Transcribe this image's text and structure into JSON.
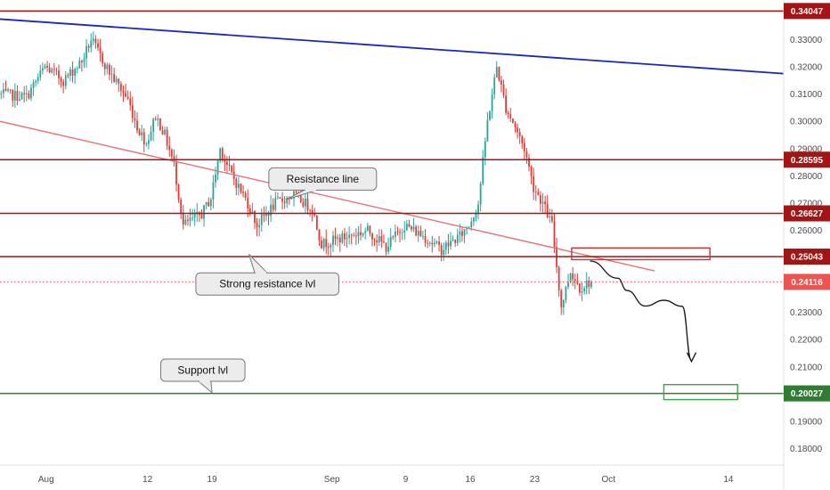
{
  "chart_data": {
    "type": "candlestick",
    "x_range": [
      "2019-07-27",
      "2019-10-20"
    ],
    "y_range": [
      0.174,
      0.3445
    ],
    "y_ticks": [
      {
        "value": 0.18,
        "label": "0.18000"
      },
      {
        "value": 0.19,
        "label": "0.19000"
      },
      {
        "value": 0.21,
        "label": "0.21000"
      },
      {
        "value": 0.22,
        "label": "0.22000"
      },
      {
        "value": 0.23,
        "label": "0.23000"
      },
      {
        "value": 0.26,
        "label": "0.26000"
      },
      {
        "value": 0.27,
        "label": "0.27000"
      },
      {
        "value": 0.28,
        "label": "0.28000"
      },
      {
        "value": 0.29,
        "label": "0.29000"
      },
      {
        "value": 0.3,
        "label": "0.30000"
      },
      {
        "value": 0.31,
        "label": "0.31000"
      },
      {
        "value": 0.32,
        "label": "0.32000"
      },
      {
        "value": 0.33,
        "label": "0.33000"
      }
    ],
    "x_ticks": [
      {
        "date": "2019-08-01",
        "label": "Aug"
      },
      {
        "date": "2019-08-12",
        "label": "12"
      },
      {
        "date": "2019-08-19",
        "label": "19"
      },
      {
        "date": "2019-09-01",
        "label": "Sep"
      },
      {
        "date": "2019-09-09",
        "label": "9"
      },
      {
        "date": "2019-09-16",
        "label": "16"
      },
      {
        "date": "2019-09-23",
        "label": "23"
      },
      {
        "date": "2019-10-01",
        "label": "Oct"
      },
      {
        "date": "2019-10-14",
        "label": "14"
      }
    ],
    "price_path": [
      [
        "2019-07-27",
        0.31
      ],
      [
        "2019-07-30",
        0.309
      ],
      [
        "2019-08-01",
        0.32
      ],
      [
        "2019-08-03",
        0.315
      ],
      [
        "2019-08-05",
        0.322
      ],
      [
        "2019-08-06",
        0.33
      ],
      [
        "2019-08-08",
        0.318
      ],
      [
        "2019-08-10",
        0.308
      ],
      [
        "2019-08-11",
        0.298
      ],
      [
        "2019-08-12",
        0.292
      ],
      [
        "2019-08-13",
        0.302
      ],
      [
        "2019-08-14",
        0.295
      ],
      [
        "2019-08-15",
        0.284
      ],
      [
        "2019-08-16",
        0.262
      ],
      [
        "2019-08-18",
        0.266
      ],
      [
        "2019-08-19",
        0.272
      ],
      [
        "2019-08-20",
        0.29
      ],
      [
        "2019-08-21",
        0.282
      ],
      [
        "2019-08-23",
        0.27
      ],
      [
        "2019-08-24",
        0.262
      ],
      [
        "2019-08-26",
        0.27
      ],
      [
        "2019-08-28",
        0.273
      ],
      [
        "2019-08-30",
        0.268
      ],
      [
        "2019-08-31",
        0.255
      ],
      [
        "2019-09-02",
        0.257
      ],
      [
        "2019-09-05",
        0.26
      ],
      [
        "2019-09-07",
        0.254
      ],
      [
        "2019-09-09",
        0.262
      ],
      [
        "2019-09-11",
        0.258
      ],
      [
        "2019-09-13",
        0.253
      ],
      [
        "2019-09-15",
        0.258
      ],
      [
        "2019-09-16",
        0.262
      ],
      [
        "2019-09-17",
        0.27
      ],
      [
        "2019-09-18",
        0.3
      ],
      [
        "2019-09-19",
        0.32
      ],
      [
        "2019-09-20",
        0.305
      ],
      [
        "2019-09-21",
        0.298
      ],
      [
        "2019-09-22",
        0.29
      ],
      [
        "2019-09-23",
        0.276
      ],
      [
        "2019-09-24",
        0.27
      ],
      [
        "2019-09-25",
        0.262
      ],
      [
        "2019-09-26",
        0.232
      ],
      [
        "2019-09-27",
        0.245
      ],
      [
        "2019-09-28",
        0.239
      ],
      [
        "2019-09-29",
        0.241
      ]
    ],
    "trendlines": [
      {
        "name": "descending-resistance",
        "color": "#1a24c4",
        "from": [
          "2019-07-27",
          0.3375
        ],
        "to": [
          "2019-10-20",
          0.3175
        ]
      },
      {
        "name": "resistance-line",
        "color": "#e57373",
        "from": [
          "2019-07-27",
          0.3
        ],
        "to": [
          "2019-10-06",
          0.2452
        ]
      }
    ],
    "levels": [
      {
        "name": "level-0.34047",
        "value": 0.34047,
        "label": "0.34047",
        "color": "#a31515"
      },
      {
        "name": "level-0.28595",
        "value": 0.28595,
        "label": "0.28595",
        "color": "#a31515"
      },
      {
        "name": "level-0.26627",
        "value": 0.26627,
        "label": "0.26627",
        "color": "#a31515"
      },
      {
        "name": "level-0.25043",
        "value": 0.25043,
        "label": "0.25043",
        "color": "#a31515"
      },
      {
        "name": "level-0.20027",
        "value": 0.20027,
        "label": "0.20027",
        "color": "#2e7d32"
      }
    ],
    "current_price": {
      "value": 0.24116,
      "label": "0.24116",
      "color": "#ef5350"
    },
    "zones": [
      {
        "name": "resistance-zone",
        "color": "#d32f2f",
        "x": [
          "2019-09-27",
          "2019-10-12"
        ],
        "y": [
          0.2493,
          0.2536
        ]
      },
      {
        "name": "target-zone",
        "color": "#43a047",
        "x": [
          "2019-10-07",
          "2019-10-15"
        ],
        "y": [
          0.198,
          0.2035
        ]
      }
    ],
    "projection": [
      [
        "2019-09-29",
        0.2488
      ],
      [
        "2019-10-02",
        0.2425
      ],
      [
        "2019-10-03",
        0.238
      ],
      [
        "2019-10-05",
        0.2323
      ],
      [
        "2019-10-07",
        0.2344
      ],
      [
        "2019-10-09",
        0.2322
      ],
      [
        "2019-10-10",
        0.2123
      ]
    ],
    "annotations": [
      {
        "name": "resistance-line-callout",
        "text": "Resistance line",
        "date": "2019-08-31",
        "price": 0.2789,
        "pointer": [
          "2019-08-27",
          0.2713
        ]
      },
      {
        "name": "strong-resistance-callout",
        "text": "Strong resistance lvl",
        "date": "2019-08-25",
        "price": 0.2404,
        "pointer": [
          "2019-08-23",
          0.2513
        ]
      },
      {
        "name": "support-callout",
        "text": "Support lvl",
        "date": "2019-08-18",
        "price": 0.2088,
        "pointer": [
          "2019-08-19",
          0.2005
        ]
      }
    ]
  }
}
